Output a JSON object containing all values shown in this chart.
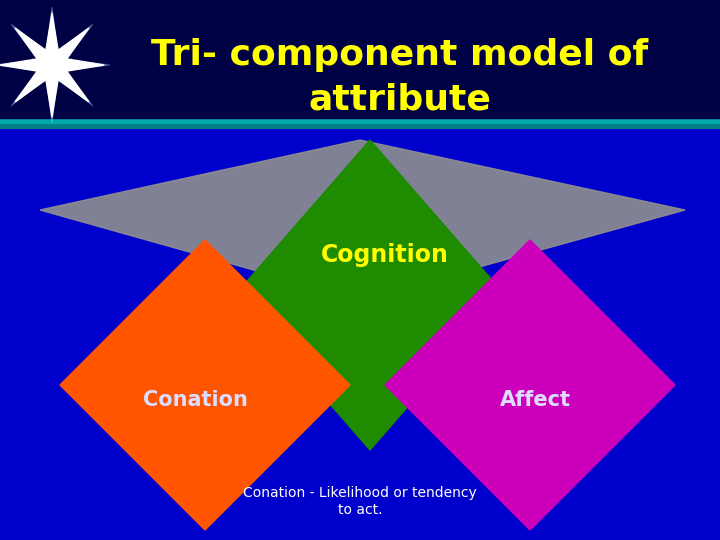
{
  "title_line1": "Tri- component model of",
  "title_line2": "attribute",
  "title_color": "#FFFF00",
  "title_fontsize": 26,
  "bg_color": "#0000CC",
  "bg_top_color": "#000044",
  "star_color": "white",
  "teal_line_color1": "#008080",
  "teal_line_color2": "#00AAAA",
  "gray_color": "#909090",
  "green_color": "#1E8B00",
  "orange_color": "#FF5500",
  "magenta_color": "#CC00BB",
  "cognition_label": "Cognition",
  "cognition_color": "#FFFF00",
  "conation_label": "Conation",
  "conation_color": "#DDDDFF",
  "affect_label": "Affect",
  "affect_color": "#DDDDFF",
  "footnote_line1": "Conation - Likelihood or tendency",
  "footnote_line2": "to act.",
  "footnote_color": "#FFFFFF",
  "footnote_fontsize": 10
}
